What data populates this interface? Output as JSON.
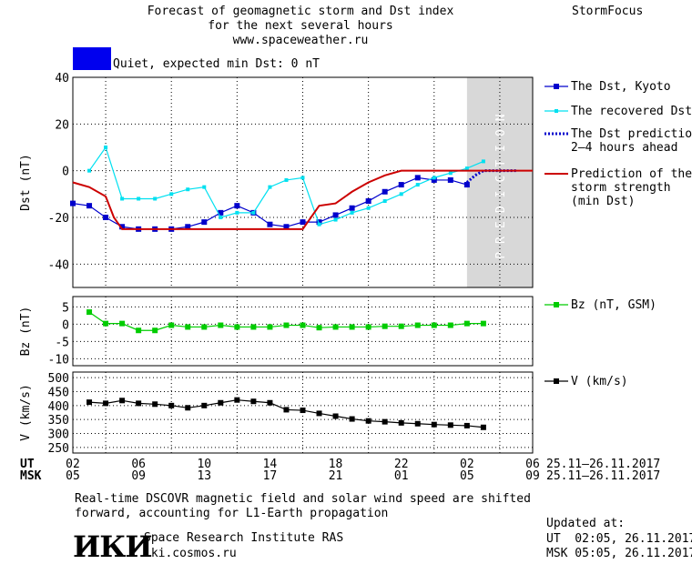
{
  "header": {
    "title_line1": "Forecast of geomagnetic storm and Dst index",
    "title_line2": "for the next several hours",
    "site": "www.spaceweather.ru",
    "brand": "StormFocus",
    "status_text": "Quiet, expected min Dst: 0 nT",
    "status_color": "#0000ee"
  },
  "footer": {
    "note_line1": "Real-time DSCOVR magnetic field and solar wind speed are shifted",
    "note_line2": "forward, accounting for L1-Earth propagation",
    "logo_text": "ИКИ",
    "institute": "Space Research Institute RAS",
    "institute_url": "iki.cosmos.ru",
    "updated_label": "Updated at:",
    "updated_ut": "UT  02:05, 26.11.2017",
    "updated_msk": "MSK 05:05, 26.11.2017"
  },
  "time_axis": {
    "ut_label": "UT",
    "msk_label": "MSK",
    "ut_ticks": [
      "02",
      "06",
      "10",
      "14",
      "18",
      "22",
      "02",
      "06"
    ],
    "msk_ticks": [
      "05",
      "09",
      "13",
      "17",
      "21",
      "01",
      "05",
      "09"
    ],
    "date_range_ut": "25.11–26.11.2017",
    "date_range_msk": "25.11–26.11.2017"
  },
  "chart_data": [
    {
      "type": "line",
      "ylabel": "Dst (nT)",
      "ylim": [
        -50,
        40
      ],
      "yticks": [
        40,
        20,
        0,
        -20,
        -40
      ],
      "xlim_hours": [
        0,
        28
      ],
      "prediction_label": "PREDICTION",
      "prediction_window_hours": [
        24,
        28
      ],
      "series": [
        {
          "name": "The Dst, Kyoto",
          "color": "#0000cc",
          "marker": "square",
          "x": [
            0,
            1,
            2,
            3,
            4,
            5,
            6,
            7,
            8,
            9,
            10,
            11,
            12,
            13,
            14,
            15,
            16,
            17,
            18,
            19,
            20,
            21,
            22,
            23,
            24
          ],
          "y": [
            -14,
            -15,
            -20,
            -24,
            -25,
            -25,
            -25,
            -24,
            -22,
            -18,
            -15,
            -18,
            -23,
            -24,
            -22,
            -22,
            -19,
            -16,
            -13,
            -9,
            -6,
            -3,
            -4,
            -4,
            -6
          ]
        },
        {
          "name": "The recovered Dst",
          "color": "#00e0f0",
          "marker": "square-small",
          "x": [
            1,
            2,
            3,
            4,
            5,
            6,
            7,
            8,
            9,
            10,
            11,
            12,
            13,
            14,
            15,
            16,
            17,
            18,
            19,
            20,
            21,
            22,
            23,
            24,
            25
          ],
          "y": [
            0,
            10,
            -12,
            -12,
            -12,
            -10,
            -8,
            -7,
            -20,
            -18,
            -18,
            -7,
            -4,
            -3,
            -23,
            -21,
            -18,
            -16,
            -13,
            -10,
            -6,
            -3,
            -1,
            1,
            4
          ]
        },
        {
          "name": "The Dst prediction\n2–4 hours ahead",
          "color": "#0000cc",
          "style": "dotted",
          "x": [
            24,
            24.5,
            25,
            26,
            27
          ],
          "y": [
            -5,
            -2,
            0,
            0,
            0
          ]
        },
        {
          "name": "Prediction of the\nstorm strength\n(min Dst)",
          "color": "#cc0000",
          "style": "solid",
          "x": [
            0,
            1,
            2,
            2.5,
            3,
            4,
            5,
            6,
            7,
            8,
            9,
            10,
            11,
            12,
            13,
            14,
            15,
            16,
            17,
            18,
            19,
            20,
            21,
            22,
            23,
            24,
            25,
            26,
            27,
            28
          ],
          "y": [
            -5,
            -7,
            -11,
            -20,
            -25,
            -25,
            -25,
            -25,
            -25,
            -25,
            -25,
            -25,
            -25,
            -25,
            -25,
            -25,
            -15,
            -14,
            -9,
            -5,
            -2,
            0,
            0,
            0,
            0,
            0,
            0,
            0,
            0,
            0
          ]
        }
      ]
    },
    {
      "type": "line",
      "ylabel": "Bz (nT)",
      "ylim": [
        -12,
        8
      ],
      "yticks": [
        5,
        0,
        -5,
        -10
      ],
      "series": [
        {
          "name": "Bz (nT, GSM)",
          "color": "#00cc00",
          "marker": "square",
          "x": [
            1,
            2,
            3,
            4,
            5,
            6,
            7,
            8,
            9,
            10,
            11,
            12,
            13,
            14,
            15,
            16,
            17,
            18,
            19,
            20,
            21,
            22,
            23,
            24,
            25
          ],
          "y": [
            3.5,
            0.2,
            0.2,
            -1.8,
            -1.8,
            -0.3,
            -0.8,
            -0.8,
            -0.3,
            -0.8,
            -0.8,
            -0.8,
            -0.3,
            -0.3,
            -1.0,
            -0.8,
            -0.8,
            -0.8,
            -0.6,
            -0.6,
            -0.3,
            -0.3,
            -0.3,
            0.2,
            0.2
          ]
        }
      ]
    },
    {
      "type": "line",
      "ylabel": "V (km/s)",
      "ylim": [
        230,
        520
      ],
      "yticks": [
        500,
        450,
        400,
        350,
        300,
        250
      ],
      "series": [
        {
          "name": "V (km/s)",
          "color": "#000000",
          "marker": "square",
          "x": [
            1,
            2,
            3,
            4,
            5,
            6,
            7,
            8,
            9,
            10,
            11,
            12,
            13,
            14,
            15,
            16,
            17,
            18,
            19,
            20,
            21,
            22,
            23,
            24,
            25
          ],
          "y": [
            412,
            408,
            418,
            408,
            405,
            400,
            392,
            400,
            410,
            420,
            415,
            410,
            385,
            383,
            372,
            362,
            352,
            345,
            342,
            338,
            335,
            332,
            330,
            328,
            322
          ]
        }
      ]
    }
  ]
}
